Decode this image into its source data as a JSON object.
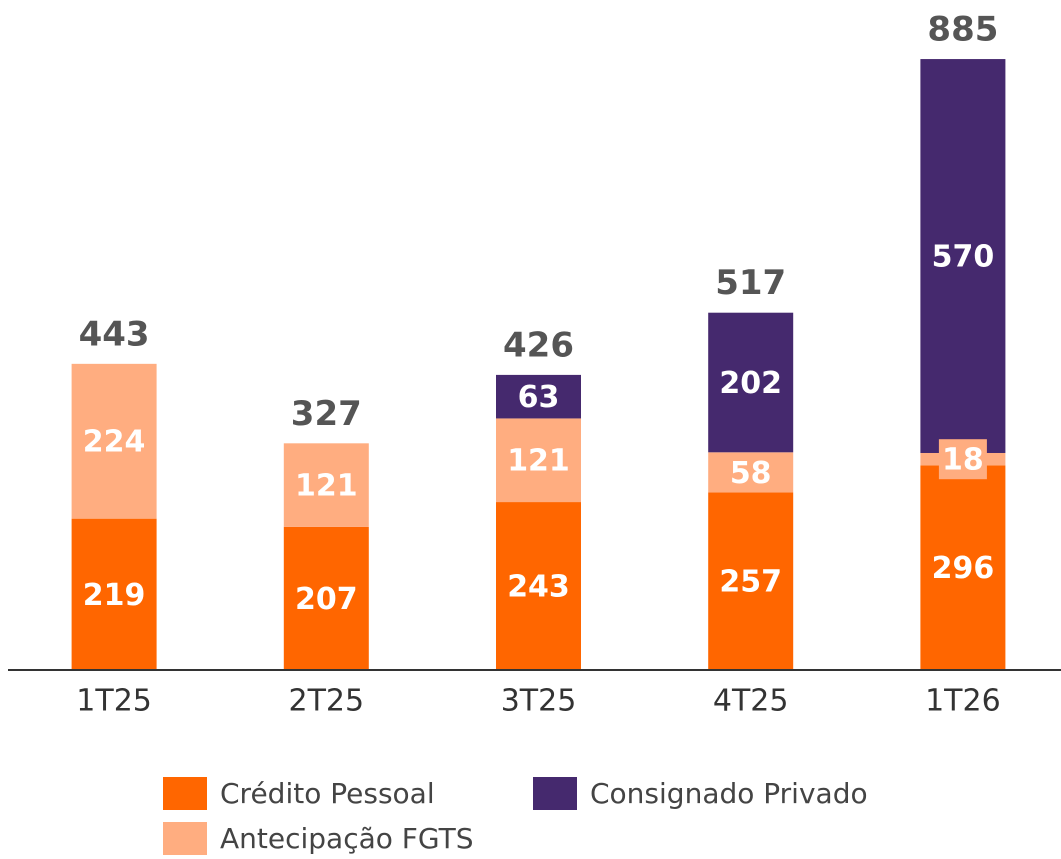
{
  "chart_data": {
    "type": "stacked_bar",
    "categories": [
      "1T25",
      "2T25",
      "3T25",
      "4T25",
      "1T26"
    ],
    "series": [
      {
        "name": "Crédito Pessoal",
        "color": "#ff6600",
        "values": [
          219,
          207,
          243,
          257,
          296
        ]
      },
      {
        "name": "Antecipação FGTS",
        "color": "#ffad80",
        "values": [
          224,
          121,
          121,
          58,
          18
        ]
      },
      {
        "name": "Consignado Privado",
        "color": "#45296e",
        "values": [
          null,
          null,
          63,
          202,
          570
        ]
      }
    ],
    "totals": [
      443,
      327,
      426,
      517,
      885
    ],
    "ylim": [
      0,
      900
    ]
  }
}
